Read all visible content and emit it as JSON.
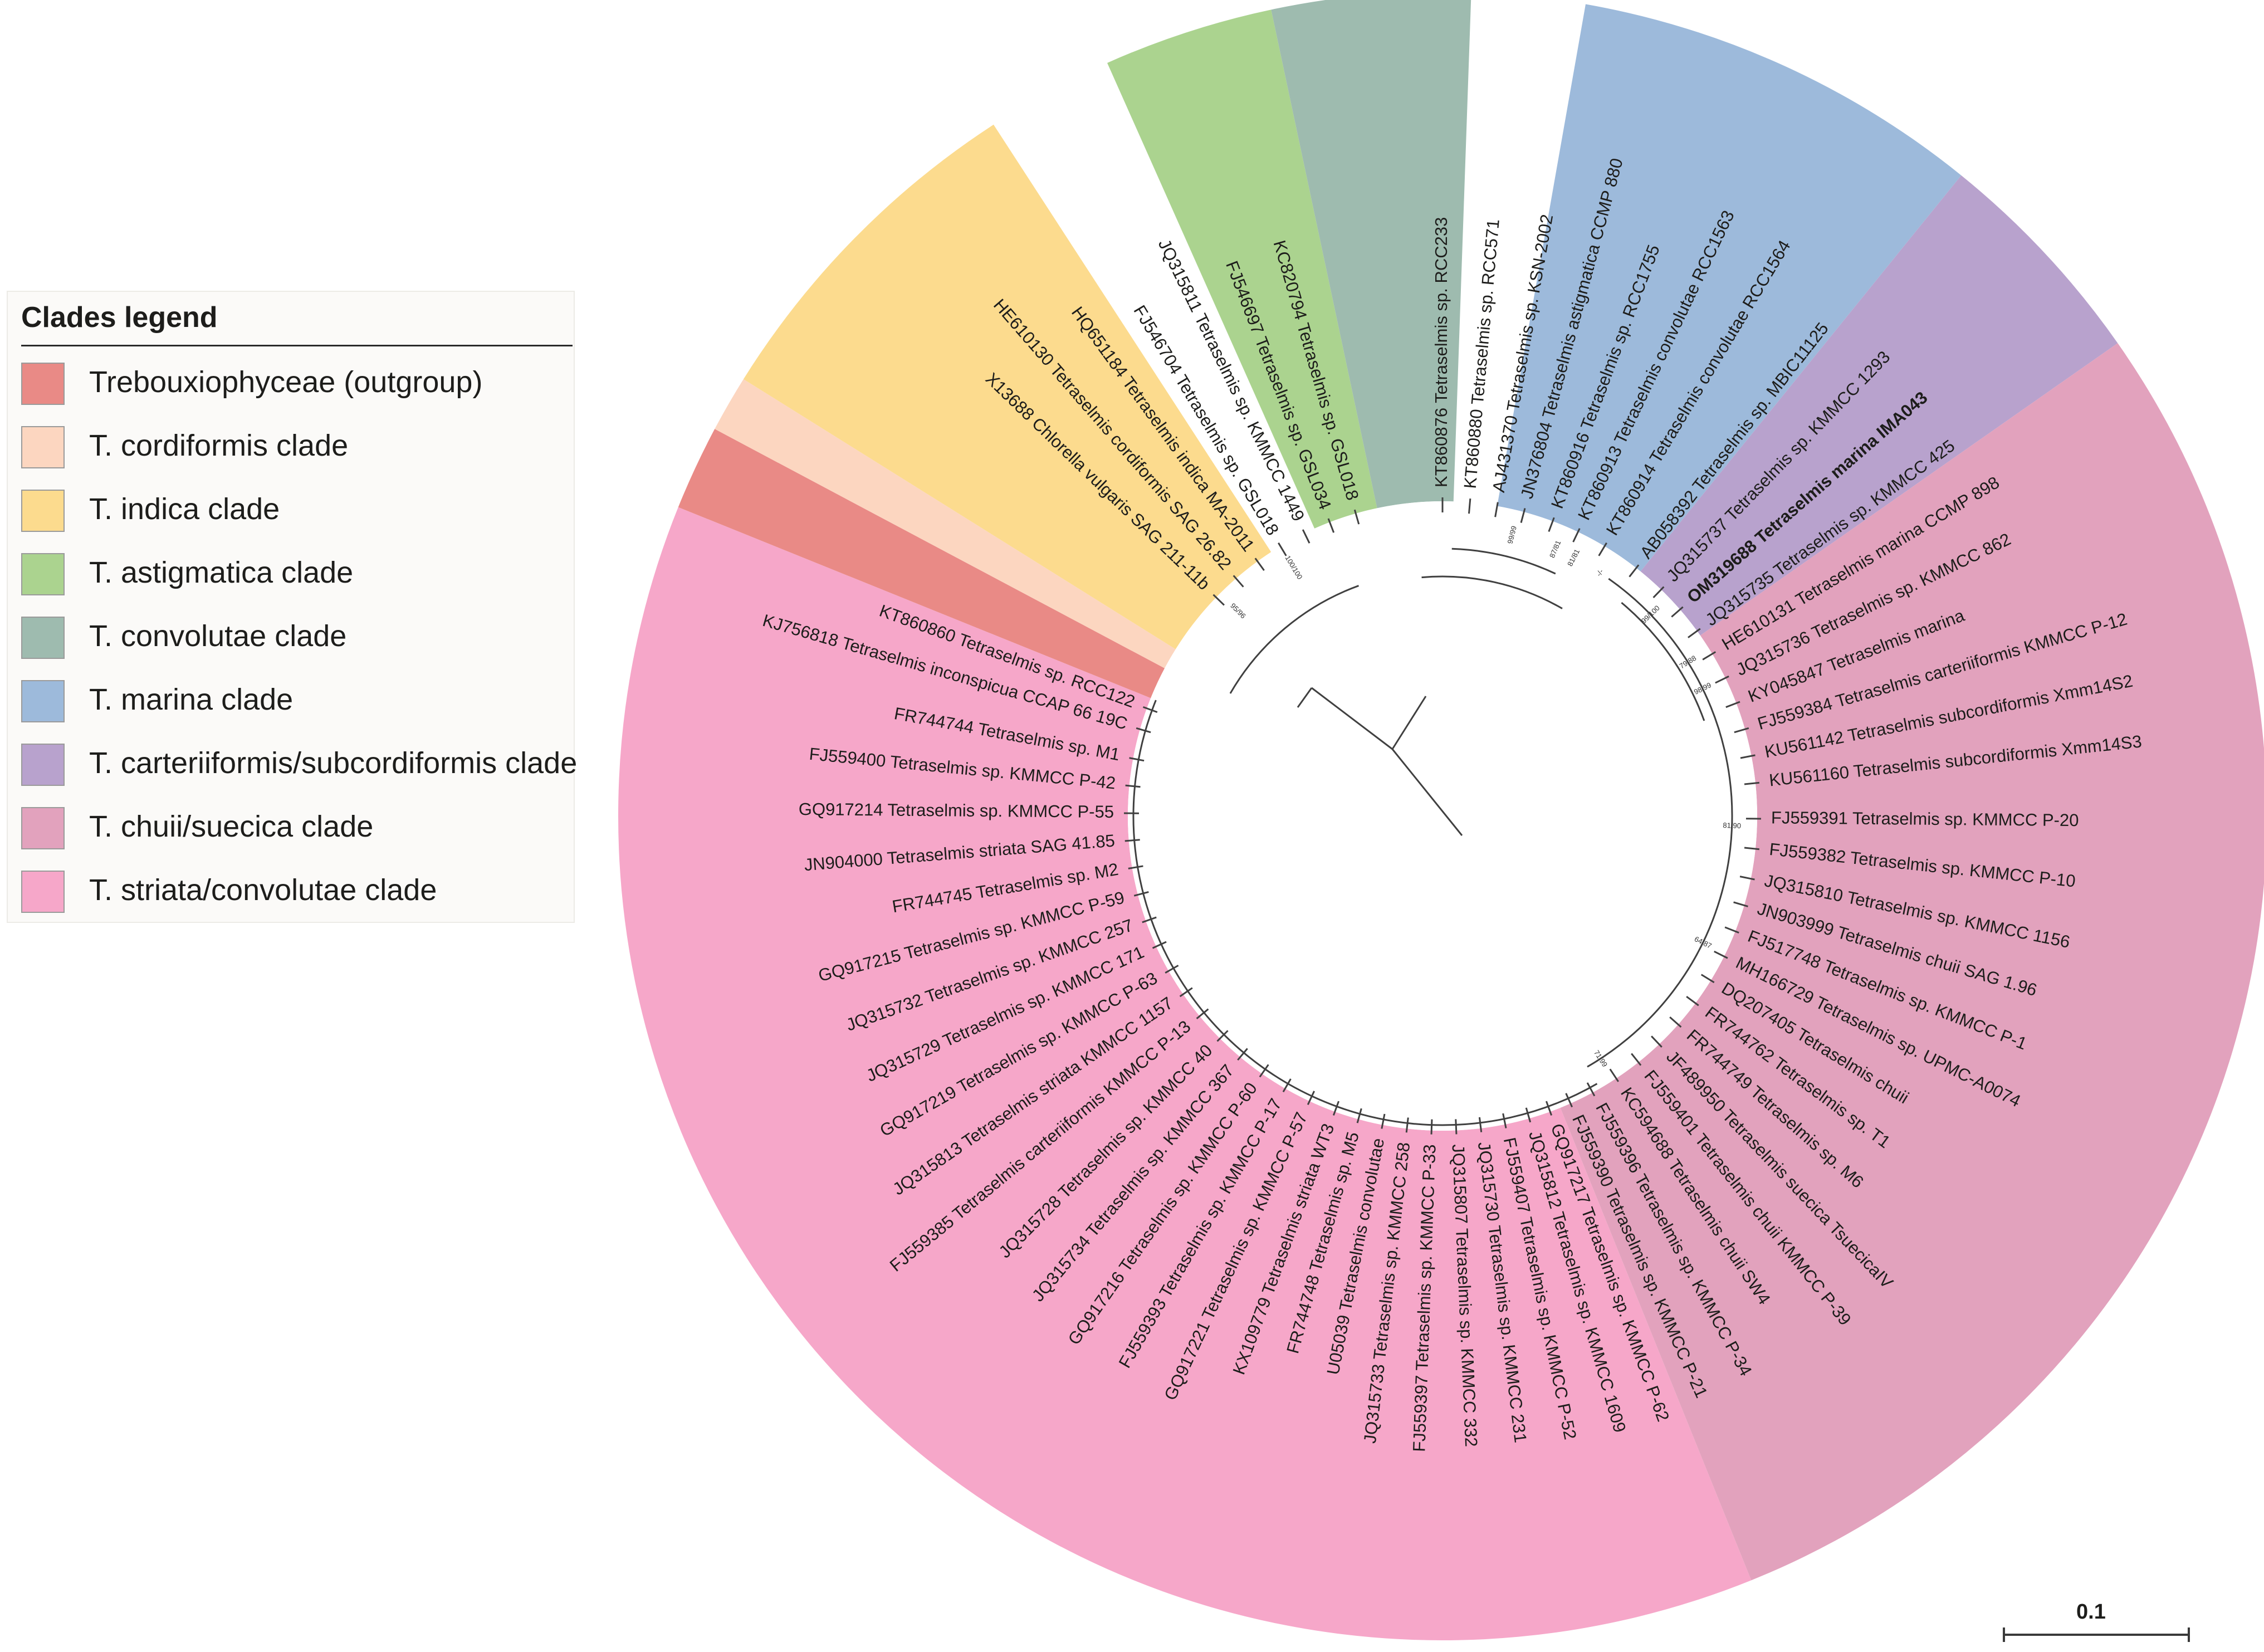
{
  "legend": {
    "title": "Clades legend",
    "items": [
      {
        "key": "trebouxio",
        "label": "Trebouxiophyceae (outgroup)",
        "color": "#e98a86"
      },
      {
        "key": "cordiformis",
        "label": "T. cordiformis clade",
        "color": "#fcd6c0"
      },
      {
        "key": "indica",
        "label": "T. indica clade",
        "color": "#fcdb8e"
      },
      {
        "key": "astigmatica",
        "label": "T. astigmatica clade",
        "color": "#abd38f"
      },
      {
        "key": "convolutae",
        "label": "T. convolutae clade",
        "color": "#9ebbaf"
      },
      {
        "key": "marina",
        "label": "T. marina clade",
        "color": "#9dbadb"
      },
      {
        "key": "carteriiformis",
        "label": "T. carteriiformis/subcordiformis clade",
        "color": "#b8a2cd"
      },
      {
        "key": "chuii",
        "label": "T. chuii/suecica clade",
        "color": "#e2a2bd"
      },
      {
        "key": "striata",
        "label": "T. striata/convolutae clade",
        "color": "#f6a7c9"
      }
    ]
  },
  "scale_bar": {
    "label": "0.1"
  },
  "tree": {
    "clades": [
      {
        "key": "striata",
        "start": 158,
        "end": 292
      },
      {
        "key": "trebouxio",
        "start": 292,
        "end": 298
      },
      {
        "key": "cordiformis",
        "start": 298,
        "end": 302
      },
      {
        "key": "indica",
        "start": 302,
        "end": 327
      },
      {
        "key": "astigmatica",
        "start": 336,
        "end": 348
      },
      {
        "key": "convolutae",
        "start": 348,
        "end": 362
      },
      {
        "key": "marina",
        "start": 10,
        "end": 39
      },
      {
        "key": "carteriiformis",
        "start": 39,
        "end": 55
      },
      {
        "key": "chuii",
        "start": 55,
        "end": 158
      }
    ],
    "leaves": [
      {
        "label": "KT860860 Tetraselmis sp. RCC122",
        "angle": 290.0
      },
      {
        "label": "KJ756818 Tetraselmis inconspicua CCAP 66 19C",
        "angle": 286.0
      },
      {
        "label": "FR744744 Tetraselmis sp. M1",
        "angle": 280.5
      },
      {
        "label": "FJ559400 Tetraselmis sp. KMMCC P-42",
        "angle": 275.5
      },
      {
        "label": "GQ917214 Tetraselmis sp. KMMCC P-55",
        "angle": 270.5
      },
      {
        "label": "JN904000 Tetraselmis striata SAG 41.85",
        "angle": 265.5
      },
      {
        "label": "FR744745 Tetraselmis sp. M2",
        "angle": 260.5
      },
      {
        "label": "GQ917215 Tetraselmis sp. KMMCC P-59",
        "angle": 255.5
      },
      {
        "label": "JQ315732 Tetraselmis sp. KMMCC 257",
        "angle": 250.5
      },
      {
        "label": "JQ315729 Tetraselmis sp. KMMCC 171",
        "angle": 245.5
      },
      {
        "label": "GQ917219 Tetraselmis sp. KMMCC P-63",
        "angle": 240.5
      },
      {
        "label": "JQ315813 Tetraselmis striata KMMCC 1157",
        "angle": 235.5
      },
      {
        "label": "FJ559385 Tetraselmis carteriiformis KMMCC P-13",
        "angle": 230.5
      },
      {
        "label": "JQ315728 Tetraselmis sp. KMMCC 40",
        "angle": 225.0
      },
      {
        "label": "JQ315734 Tetraselmis sp. KMMCC 367",
        "angle": 220.0
      },
      {
        "label": "GQ917216 Tetraselmis sp. KMMCC P-60",
        "angle": 215.0
      },
      {
        "label": "FJ559393 Tetraselmis sp. KMMCC P-17",
        "angle": 210.0
      },
      {
        "label": "GQ917221 Tetraselmis sp. KMMCC P-57",
        "angle": 205.0
      },
      {
        "label": "KX109779 Tetraselmis striata WT3",
        "angle": 200.0
      },
      {
        "label": "FR744748 Tetraselmis sp. M5",
        "angle": 195.5
      },
      {
        "label": "U05039 Tetraselmis convolutae",
        "angle": 191.0
      },
      {
        "label": "JQ315733 Tetraselmis sp. KMMCC 258",
        "angle": 186.5
      },
      {
        "label": "FJ559397 Tetraselmis sp. KMMCC P-33",
        "angle": 182.0
      },
      {
        "label": "JQ315807 Tetraselmis sp. KMMCC 332",
        "angle": 177.5
      },
      {
        "label": "JQ315730 Tetraselmis sp. KMMCC 231",
        "angle": 173.0
      },
      {
        "label": "FJ559407 Tetraselmis sp. KMMCC P-52",
        "angle": 168.5
      },
      {
        "label": "JQ315812 Tetraselmis sp. KMMCC 1609",
        "angle": 164.0
      },
      {
        "label": "GQ917217 Tetraselmis sp. KMMCC P-62",
        "angle": 160.0
      },
      {
        "label": "FJ559390 Tetraselmis sp. KMMCC P-21",
        "angle": 156.0
      },
      {
        "label": "FJ559396 Tetraselmis sp. KMMCC P-34",
        "angle": 151.5
      },
      {
        "label": "KC594688 Tetraselmis chuii SW4",
        "angle": 146.5
      },
      {
        "label": "FJ559401 Tetraselmis chuii KMMCC P-39",
        "angle": 141.5
      },
      {
        "label": "JF489950 Tetraselmis suecica TsuecicaIV",
        "angle": 136.5
      },
      {
        "label": "FR744749 Tetraselmis sp. M6",
        "angle": 131.5
      },
      {
        "label": "FR744762 Tetraselmis sp. T1",
        "angle": 126.5
      },
      {
        "label": "DQ207405 Tetraselmis chuii",
        "angle": 121.5
      },
      {
        "label": "MH166729 Tetraselmis sp. UPMC-A0074",
        "angle": 116.5
      },
      {
        "label": "FJ517748 Tetraselmis sp. KMMCC P-1",
        "angle": 111.5
      },
      {
        "label": "JN903999 Tetraselmis chuii SAG 1.96",
        "angle": 106.5
      },
      {
        "label": "JQ315810 Tetraselmis sp. KMMCC 1156",
        "angle": 101.5
      },
      {
        "label": "FJ559382 Tetraselmis sp. KMMCC P-10",
        "angle": 96.0
      },
      {
        "label": "FJ559391 Tetraselmis sp. KMMCC P-20",
        "angle": 90.5
      },
      {
        "label": "KU561160 Tetraselmis subcordiformis Xmm14S3",
        "angle": 84.0
      },
      {
        "label": "KU561142 Tetraselmis subcordiformis Xmm14S2",
        "angle": 79.0
      },
      {
        "label": "FJ559384 Tetraselmis carteriiformis KMMCC P-12",
        "angle": 74.0
      },
      {
        "label": "KY045847 Tetraselmis marina",
        "angle": 69.0
      },
      {
        "label": "JQ315736 Tetraselmis sp. KMMCC 862",
        "angle": 64.0
      },
      {
        "label": "HE610131 Tetraselmis marina CCMP 898",
        "angle": 59.0
      },
      {
        "label": "JQ315735 Tetraselmis sp. KMMCC 425",
        "angle": 54.0
      },
      {
        "label": "OM319688 Tetraselmis marina IMA043",
        "angle": 49.0,
        "bold": true
      },
      {
        "label": "JQ315737 Tetraselmis sp. KMMCC 1293",
        "angle": 44.0
      },
      {
        "label": "AB058392 Tetraselmis sp. MBIC11125",
        "angle": 38.0
      },
      {
        "label": "KT860914 Tetraselmis convolutae RCC1564",
        "angle": 31.0
      },
      {
        "label": "KT860913 Tetraselmis convolutae RCC1563",
        "angle": 25.5
      },
      {
        "label": "KT860916 Tetraselmis sp. RCC1755",
        "angle": 20.5
      },
      {
        "label": "JN376804 Tetraselmis astigmatica CCMP 880",
        "angle": 15.0
      },
      {
        "label": "AJ431370 Tetraselmis sp. KSN-2002",
        "angle": 10.0
      },
      {
        "label": "KT860880 Tetraselmis sp. RCC571",
        "angle": 5.0
      },
      {
        "label": "KT860876 Tetraselmis sp. RCC233",
        "angle": 0.0
      },
      {
        "label": "KC820794 Tetraselmis sp. GSL018",
        "angle": 344.0
      },
      {
        "label": "FJ546697 Tetraselmis sp. GSL034",
        "angle": 339.0
      },
      {
        "label": "JQ315811 Tetraselmis sp. KMMCC 1449",
        "angle": 334.0
      },
      {
        "label": "FJ546704 Tetraselmis sp. GSL018",
        "angle": 329.0
      },
      {
        "label": "HQ651184 Tetraselmis indica MA-2011",
        "angle": 324.0
      },
      {
        "label": "HE610130 Tetraselmis cordiformis SAG 26.82",
        "angle": 319.0
      },
      {
        "label": "X13688 Chlorella vulgaris SAG 211-11b",
        "angle": 314.0
      }
    ],
    "bootstrap": [
      {
        "label": "100/100",
        "angle": 329.0
      },
      {
        "label": "95/96",
        "angle": 315.0
      },
      {
        "label": "99/99",
        "angle": 14.0
      },
      {
        "label": "87/81",
        "angle": 23.0
      },
      {
        "label": "81/81",
        "angle": 27.0
      },
      {
        "label": "-/-",
        "angle": 33.0
      },
      {
        "label": "99/100",
        "angle": 46.0
      },
      {
        "label": "98/99",
        "angle": 64.0
      },
      {
        "label": "79/88",
        "angle": 58.0
      },
      {
        "label": "81/90",
        "angle": 92.0
      },
      {
        "label": "64/87",
        "angle": 116.0
      },
      {
        "label": "71/99",
        "angle": 147.0
      }
    ]
  }
}
